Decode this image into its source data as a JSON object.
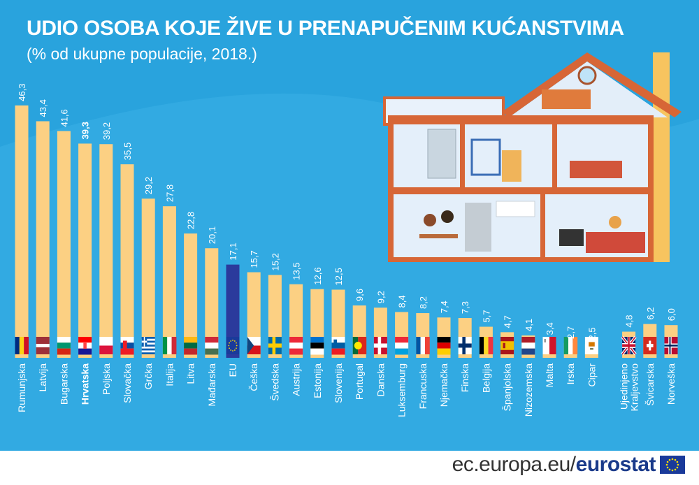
{
  "header": {
    "title": "UDIO OSOBA KOJE ŽIVE U PRENAPUČENIM KUĆANSTVIMA",
    "subtitle": "(% od ukupne populacije, 2018.)"
  },
  "footer": {
    "site": "ec.europa.eu/",
    "brand": "eurostat"
  },
  "colors": {
    "background": "#29a3dd",
    "bar": "#fcd083",
    "bar_highlight": "#2b3a9c",
    "label": "#ffffff",
    "bottom": "#ffffff"
  },
  "chart_data": {
    "type": "bar",
    "title": "UDIO OSOBA KOJE ŽIVE U PRENAPUČENIM KUĆANSTVIMA",
    "subtitle": "(% od ukupne populacije, 2018.)",
    "unit": "%",
    "ylim": [
      0,
      50
    ],
    "grid": false,
    "highlight": "EU",
    "bold_category": "Hrvatska",
    "gap_after": "Cipar",
    "categories": [
      "Rumunjska",
      "Latvija",
      "Bugarska",
      "Hrvatska",
      "Poljska",
      "Slovačka",
      "Grčka",
      "Italija",
      "Litva",
      "Mađarska",
      "EU",
      "Češka",
      "Švedska",
      "Austrija",
      "Estonija",
      "Slovenija",
      "Portugal",
      "Danska",
      "Luksemburg",
      "Francuska",
      "Njemačka",
      "Finska",
      "Belgija",
      "Španjolska",
      "Nizozemska",
      "Malta",
      "Irska",
      "Cipar",
      "Ujedinjeno Kraljevstvo",
      "Švicarska",
      "Norveška"
    ],
    "value_labels": [
      "46,3",
      "43,4",
      "41,6",
      "39,3",
      "39,2",
      "35,5",
      "29,2",
      "27,8",
      "22,8",
      "20,1",
      "17,1",
      "15,7",
      "15,2",
      "13,5",
      "12,6",
      "12,5",
      "9,6",
      "9,2",
      "8,4",
      "8,2",
      "7,4",
      "7,3",
      "5,7",
      "4,7",
      "4,1",
      "3,4",
      "2,7",
      "2,5",
      "4,8",
      "6,2",
      "6,0"
    ],
    "values": [
      46.3,
      43.4,
      41.6,
      39.3,
      39.2,
      35.5,
      29.2,
      27.8,
      22.8,
      20.1,
      17.1,
      15.7,
      15.2,
      13.5,
      12.6,
      12.5,
      9.6,
      9.2,
      8.4,
      8.2,
      7.4,
      7.3,
      5.7,
      4.7,
      4.1,
      3.4,
      2.7,
      2.5,
      4.8,
      6.2,
      6.0
    ],
    "flags": [
      "flag-romania",
      "flag-latvia",
      "flag-bulgaria",
      "flag-croatia",
      "flag-poland",
      "flag-slovakia",
      "flag-greece",
      "flag-italy",
      "flag-lithuania",
      "flag-hungary",
      "flag-eu",
      "flag-czechia",
      "flag-sweden",
      "flag-austria",
      "flag-estonia",
      "flag-slovenia",
      "flag-portugal",
      "flag-denmark",
      "flag-luxembourg",
      "flag-france",
      "flag-germany",
      "flag-finland",
      "flag-belgium",
      "flag-spain",
      "flag-netherlands",
      "flag-malta",
      "flag-ireland",
      "flag-cyprus",
      "flag-uk",
      "flag-switzerland",
      "flag-norway"
    ]
  }
}
